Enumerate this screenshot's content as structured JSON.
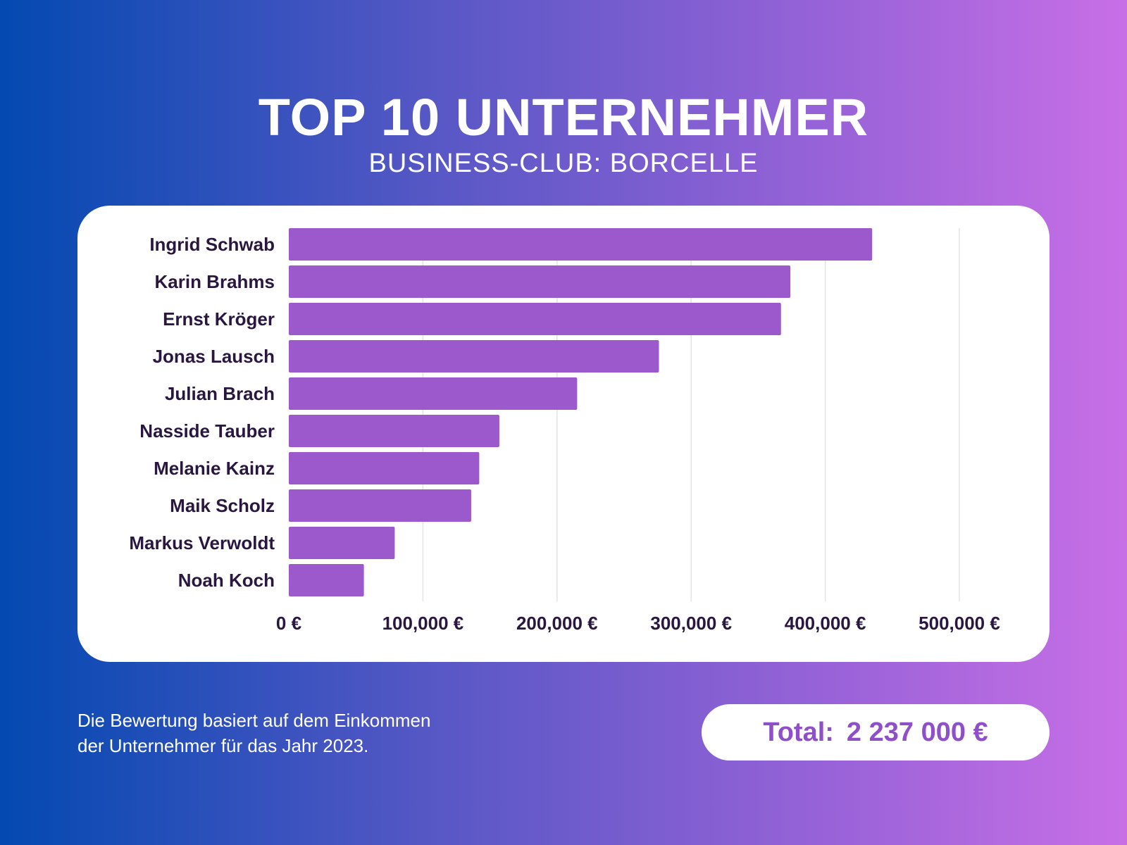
{
  "header": {
    "title": "TOP 10 UNTERNEHMER",
    "subtitle": "BUSINESS-CLUB: BORCELLE"
  },
  "chart_data": {
    "type": "bar",
    "orientation": "horizontal",
    "categories": [
      "Ingrid Schwab",
      "Karin Brahms",
      "Ernst Kröger",
      "Jonas Lausch",
      "Julian Brach",
      "Nasside Tauber",
      "Melanie Kainz",
      "Maik Scholz",
      "Markus Verwoldt",
      "Noah Koch"
    ],
    "values": [
      435000,
      374000,
      367000,
      276000,
      215000,
      157000,
      142000,
      136000,
      79000,
      56000
    ],
    "xlim": [
      0,
      500000
    ],
    "ticks": [
      0,
      100000,
      200000,
      300000,
      400000,
      500000
    ],
    "tick_labels": [
      "0 €",
      "100,000 €",
      "200,000 €",
      "300,000 €",
      "400,000 €",
      "500,000 €"
    ],
    "grid": true,
    "bar_color": "#9b59cc",
    "grid_color": "#e3e3e3",
    "label_color": "#2a1740"
  },
  "footer": {
    "note_line1": "Die Bewertung basiert auf dem Einkommen",
    "note_line2": "der Unternehmer für das Jahr 2023.",
    "total_label": "Total:",
    "total_value": "2 237 000 €"
  },
  "colors": {
    "accent": "#8e4fc8"
  }
}
